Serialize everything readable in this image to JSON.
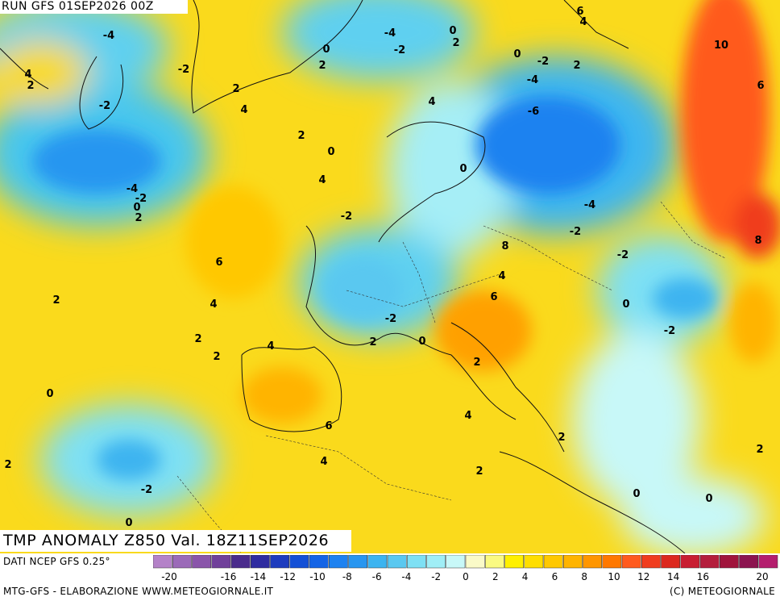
{
  "header": {
    "run_label": "RUN GFS 01SEP2026 00Z"
  },
  "map": {
    "title": "TMP ANOMALY Z850 Val. 18Z11SEP2026",
    "contour_labels": [
      {
        "v": "-4"
      },
      {
        "v": "4"
      },
      {
        "v": "2"
      },
      {
        "v": "-2"
      },
      {
        "v": "-2"
      },
      {
        "v": "0"
      },
      {
        "v": "2"
      },
      {
        "v": "-4"
      },
      {
        "v": "-2"
      },
      {
        "v": "0"
      },
      {
        "v": "2"
      },
      {
        "v": "2"
      },
      {
        "v": "4"
      },
      {
        "v": "4"
      },
      {
        "v": "2"
      },
      {
        "v": "0"
      },
      {
        "v": "4"
      },
      {
        "v": "-4"
      },
      {
        "v": "-2"
      },
      {
        "v": "0"
      },
      {
        "v": "2"
      },
      {
        "v": "-2"
      },
      {
        "v": "6"
      },
      {
        "v": "2"
      },
      {
        "v": "4"
      },
      {
        "v": "2"
      },
      {
        "v": "2"
      },
      {
        "v": "4"
      },
      {
        "v": "-2"
      },
      {
        "v": "2"
      },
      {
        "v": "0"
      },
      {
        "v": "0"
      },
      {
        "v": "6"
      },
      {
        "v": "4"
      },
      {
        "v": "2"
      },
      {
        "v": "-2"
      },
      {
        "v": "0"
      },
      {
        "v": "2"
      },
      {
        "v": "8"
      },
      {
        "v": "4"
      },
      {
        "v": "6"
      },
      {
        "v": "4"
      },
      {
        "v": "0"
      },
      {
        "v": "-6"
      },
      {
        "v": "-4"
      },
      {
        "v": "-2"
      },
      {
        "v": "2"
      },
      {
        "v": "0"
      },
      {
        "v": "-4"
      },
      {
        "v": "-2"
      },
      {
        "v": "-2"
      },
      {
        "v": "0"
      },
      {
        "v": "-2"
      },
      {
        "v": "2"
      },
      {
        "v": "0"
      },
      {
        "v": "6"
      },
      {
        "v": "4"
      },
      {
        "v": "10"
      },
      {
        "v": "6"
      },
      {
        "v": "8"
      },
      {
        "v": "2"
      },
      {
        "v": "2"
      },
      {
        "v": "0"
      }
    ]
  },
  "legend": {
    "source": "DATI NCEP GFS 0.25°",
    "tick_values": [
      "-20",
      "-18",
      "-16",
      "-14",
      "-12",
      "-10",
      "-8",
      "-6",
      "-4",
      "-2",
      "0",
      "2",
      "4",
      "6",
      "8",
      "10",
      "12",
      "14",
      "16",
      "18",
      "20"
    ],
    "tick_labels": [
      "-20",
      "-16",
      "-14",
      "-12",
      "-10",
      "-8",
      "-6",
      "-4",
      "-2",
      "0",
      "2",
      "4",
      "6",
      "8",
      "10",
      "12",
      "14",
      "16",
      "20"
    ],
    "colors": [
      "#b482c8",
      "#9b6ab8",
      "#8a55aa",
      "#70409a",
      "#4a2c8c",
      "#2f2ca0",
      "#1e3cbe",
      "#1450d6",
      "#1464e6",
      "#1e82f0",
      "#2896f0",
      "#3cb4f0",
      "#5ac8f0",
      "#7ee0f4",
      "#a0eef6",
      "#c8f8f8",
      "#fafac8",
      "#fafa82",
      "#fff000",
      "#ffde00",
      "#ffc800",
      "#ffb400",
      "#ff9600",
      "#ff7800",
      "#ff5a1e",
      "#f03c1e",
      "#dc281e",
      "#c81e32",
      "#b41e3c",
      "#a0143c",
      "#8c1450",
      "#b41e6e"
    ]
  },
  "footer": {
    "credit_left": "MTG-GFS - ELABORAZIONE WWW.METEOGIORNALE.IT",
    "credit_right": "(C) METEOGIORNALE"
  }
}
